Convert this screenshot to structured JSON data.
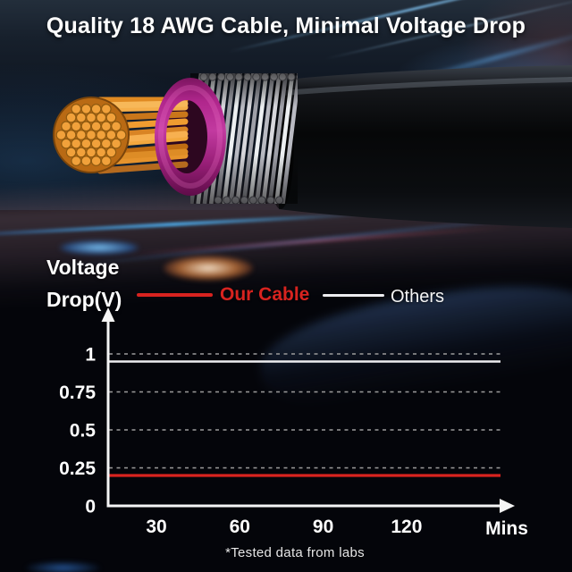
{
  "title": "Quality 18 AWG Cable, Minimal Voltage Drop",
  "footnote": "*Tested data from labs",
  "y_axis_title": {
    "line1": "Voltage",
    "line2": "Drop(V)"
  },
  "legend": {
    "our_cable": "Our Cable",
    "others": "Others"
  },
  "chart_data": {
    "type": "line",
    "ylabel": "Voltage Drop(V)",
    "xlabel": "Mins",
    "x_unit_label": "Mins",
    "xticks": [
      30,
      60,
      90,
      120
    ],
    "yticks": [
      0,
      0.25,
      0.5,
      0.75,
      1
    ],
    "ylim": [
      0,
      1.25
    ],
    "grid": "horizontal-dashed",
    "legend_position": "top",
    "series": [
      {
        "name": "Our Cable",
        "color": "#d8231f",
        "x": [
          30,
          60,
          90,
          120
        ],
        "values": [
          0.2,
          0.2,
          0.2,
          0.2
        ]
      },
      {
        "name": "Others",
        "color": "#ededf0",
        "x": [
          30,
          60,
          90,
          120
        ],
        "values": [
          0.95,
          0.95,
          0.95,
          0.95
        ]
      }
    ],
    "annotation": "*Tested data from labs"
  },
  "colors": {
    "accent_red": "#d8231f",
    "line_white": "#ededf0",
    "grid_gray": "#9c9c9c",
    "axis_white": "#f5f5f5",
    "copper": "#e8973a",
    "insulation_magenta": "#a82287",
    "shield_silver": "#d4d4d8",
    "jacket_black": "#0b0c0f"
  }
}
